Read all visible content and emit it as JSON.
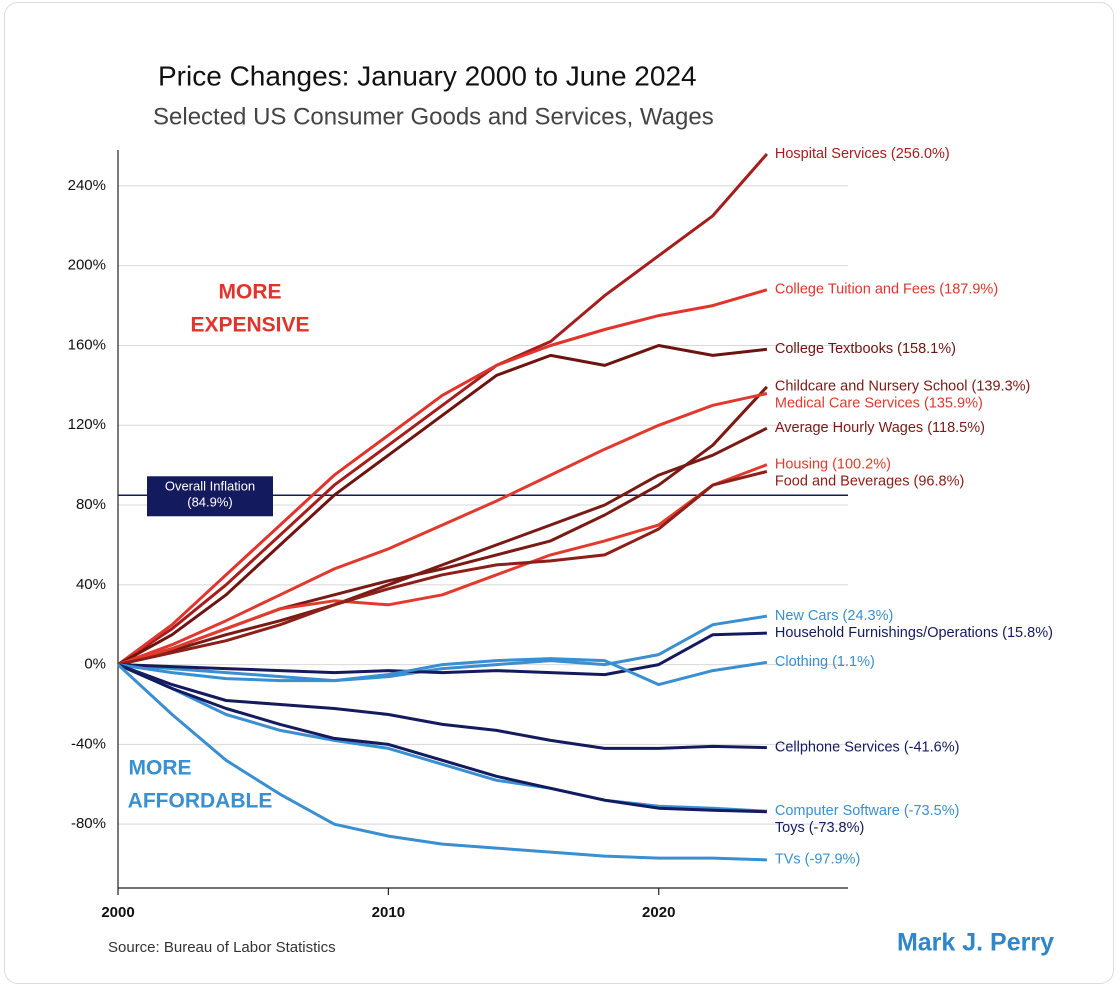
{
  "chart_data": {
    "type": "line",
    "title": "Price Changes: January 2000 to June 2024",
    "subtitle": "Selected US Consumer Goods and Services, Wages",
    "source": "Source: Bureau of Labor Statistics",
    "author": "Mark J. Perry",
    "annotations": [
      [
        "MORE",
        "EXPENSIVE"
      ],
      [
        "MORE",
        "AFFORDABLE"
      ]
    ],
    "x": [
      2000,
      2002,
      2004,
      2006,
      2008,
      2010,
      2012,
      2014,
      2016,
      2018,
      2020,
      2022,
      2024
    ],
    "xlim": [
      2000,
      2027
    ],
    "xticks": [
      2000,
      2010,
      2020
    ],
    "ylim": [
      -112,
      258
    ],
    "yticks": [
      {
        "value": -80,
        "label": "-80%"
      },
      {
        "value": -40,
        "label": "-40%"
      },
      {
        "value": 0,
        "label": "0%"
      },
      {
        "value": 40,
        "label": "40%"
      },
      {
        "value": 80,
        "label": "80%"
      },
      {
        "value": 120,
        "label": "120%"
      },
      {
        "value": 160,
        "label": "160%"
      },
      {
        "value": 200,
        "label": "200%"
      },
      {
        "value": 240,
        "label": "240%"
      }
    ],
    "grid": true,
    "reference_line": {
      "value": 84.9,
      "label": [
        "Overall Inflation",
        "(84.9%)"
      ],
      "color": "#141a5e"
    },
    "series": [
      {
        "name": "Hospital Services (256.0%)",
        "color": "#a51d1d",
        "values": [
          0,
          18,
          40,
          65,
          90,
          110,
          130,
          150,
          162,
          185,
          205,
          225,
          256.0
        ]
      },
      {
        "name": "College Tuition and Fees (187.9%)",
        "color": "#e0342c",
        "values": [
          0,
          20,
          45,
          70,
          95,
          115,
          135,
          150,
          160,
          168,
          175,
          180,
          187.9
        ]
      },
      {
        "name": "College Textbooks (158.1%)",
        "color": "#6e1410",
        "values": [
          0,
          15,
          35,
          60,
          85,
          105,
          125,
          145,
          155,
          150,
          160,
          155,
          158.1
        ]
      },
      {
        "name": "Childcare and Nursery School (139.3%)",
        "color": "#7a1a14",
        "values": [
          0,
          8,
          18,
          28,
          35,
          42,
          48,
          55,
          62,
          75,
          90,
          110,
          139.3
        ]
      },
      {
        "name": "Medical Care Services (135.9%)",
        "color": "#e03a2f",
        "values": [
          0,
          10,
          22,
          35,
          48,
          58,
          70,
          82,
          95,
          108,
          120,
          130,
          135.9
        ]
      },
      {
        "name": "Average Hourly Wages (118.5%)",
        "color": "#7a1a14",
        "values": [
          0,
          7,
          15,
          22,
          30,
          40,
          50,
          60,
          70,
          80,
          95,
          105,
          118.5
        ]
      },
      {
        "name": "Housing (100.2%)",
        "color": "#e23b2e",
        "values": [
          0,
          8,
          18,
          28,
          32,
          30,
          35,
          45,
          55,
          62,
          70,
          90,
          100.2
        ]
      },
      {
        "name": "Food and Beverages (96.8%)",
        "color": "#8a2018",
        "values": [
          0,
          6,
          12,
          20,
          30,
          38,
          45,
          50,
          52,
          55,
          68,
          90,
          96.8
        ]
      },
      {
        "name": "New Cars (24.3%)",
        "color": "#3a8fd0",
        "values": [
          0,
          -2,
          -4,
          -6,
          -8,
          -6,
          -2,
          0,
          2,
          0,
          5,
          20,
          24.3
        ]
      },
      {
        "name": "Household Furnishings/Operations (15.8%)",
        "color": "#141a5e",
        "values": [
          0,
          -1,
          -2,
          -3,
          -4,
          -3,
          -4,
          -3,
          -4,
          -5,
          0,
          15,
          15.8
        ]
      },
      {
        "name": "Clothing (1.1%)",
        "color": "#3a8fd0",
        "values": [
          0,
          -4,
          -7,
          -8,
          -8,
          -5,
          0,
          2,
          3,
          2,
          -10,
          -3,
          1.1
        ]
      },
      {
        "name": "Cellphone Services (-41.6%)",
        "color": "#141a5e",
        "values": [
          0,
          -10,
          -18,
          -20,
          -22,
          -25,
          -30,
          -33,
          -38,
          -42,
          -42,
          -41,
          -41.6
        ]
      },
      {
        "name": "Computer Software (-73.5%)",
        "color": "#3a8fd0",
        "values": [
          0,
          -12,
          -25,
          -33,
          -38,
          -42,
          -50,
          -58,
          -62,
          -68,
          -71,
          -72,
          -73.5
        ]
      },
      {
        "name": "Toys (-73.8%)",
        "color": "#141a5e",
        "values": [
          0,
          -12,
          -22,
          -30,
          -37,
          -40,
          -48,
          -56,
          -62,
          -68,
          -72,
          -73,
          -73.8
        ]
      },
      {
        "name": "TVs (-97.9%)",
        "color": "#3a8fd0",
        "values": [
          0,
          -25,
          -48,
          -65,
          -80,
          -86,
          -90,
          -92,
          -94,
          -96,
          -97,
          -97,
          -97.9
        ]
      }
    ]
  }
}
